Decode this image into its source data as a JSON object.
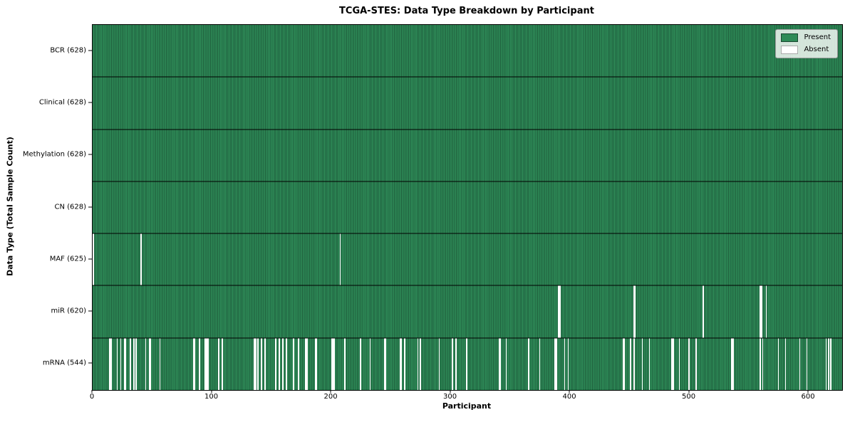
{
  "chart_data": {
    "type": "heatmap",
    "title": "TCGA-STES: Data Type Breakdown by Participant",
    "xlabel": "Participant",
    "ylabel": "Data Type (Total Sample Count)",
    "x_ticks": [
      0,
      100,
      200,
      300,
      400,
      500,
      600
    ],
    "x_range": [
      0,
      628
    ],
    "n_participants": 628,
    "grid": false,
    "colors": {
      "present": "#2e8b57",
      "present_edge": "#1f5e3c",
      "absent": "#ffffff"
    },
    "legend": {
      "position": "upper right",
      "entries": [
        {
          "label": "Present",
          "color": "#2e8b57",
          "edge": "#1a4731"
        },
        {
          "label": "Absent",
          "color": "#ffffff",
          "edge": "#aaaaaa"
        }
      ]
    },
    "rows": [
      {
        "label": "BCR (628)",
        "data_type": "BCR",
        "present_count": 628,
        "absent_participants": []
      },
      {
        "label": "Clinical (628)",
        "data_type": "Clinical",
        "present_count": 628,
        "absent_participants": []
      },
      {
        "label": "Methylation (628)",
        "data_type": "Methylation",
        "present_count": 628,
        "absent_participants": []
      },
      {
        "label": "CN (628)",
        "data_type": "CN",
        "present_count": 628,
        "absent_participants": []
      },
      {
        "label": "MAF (625)",
        "data_type": "MAF",
        "present_count": 625,
        "absent_participants": [
          0,
          40,
          207
        ]
      },
      {
        "label": "miR (620)",
        "data_type": "miR",
        "present_count": 620,
        "absent_participants": [
          390,
          391,
          453,
          454,
          511,
          559,
          560,
          564
        ]
      },
      {
        "label": "mRNA (544)",
        "data_type": "mRNA",
        "present_count": 544,
        "absent_participants": [
          14,
          15,
          20,
          23,
          26,
          27,
          31,
          34,
          36,
          44,
          47,
          48,
          56,
          84,
          85,
          89,
          94,
          95,
          96,
          105,
          108,
          135,
          136,
          138,
          141,
          144,
          153,
          156,
          159,
          162,
          168,
          172,
          178,
          179,
          186,
          187,
          200,
          201,
          202,
          211,
          224,
          232,
          244,
          245,
          257,
          258,
          261,
          272,
          274,
          290,
          301,
          304,
          313,
          340,
          341,
          346,
          365,
          374,
          387,
          388,
          395,
          398,
          444,
          445,
          450,
          453,
          460,
          466,
          485,
          486,
          491,
          499,
          505,
          535,
          536,
          559,
          561,
          574,
          580,
          592,
          598,
          614,
          616,
          618
        ]
      }
    ]
  }
}
